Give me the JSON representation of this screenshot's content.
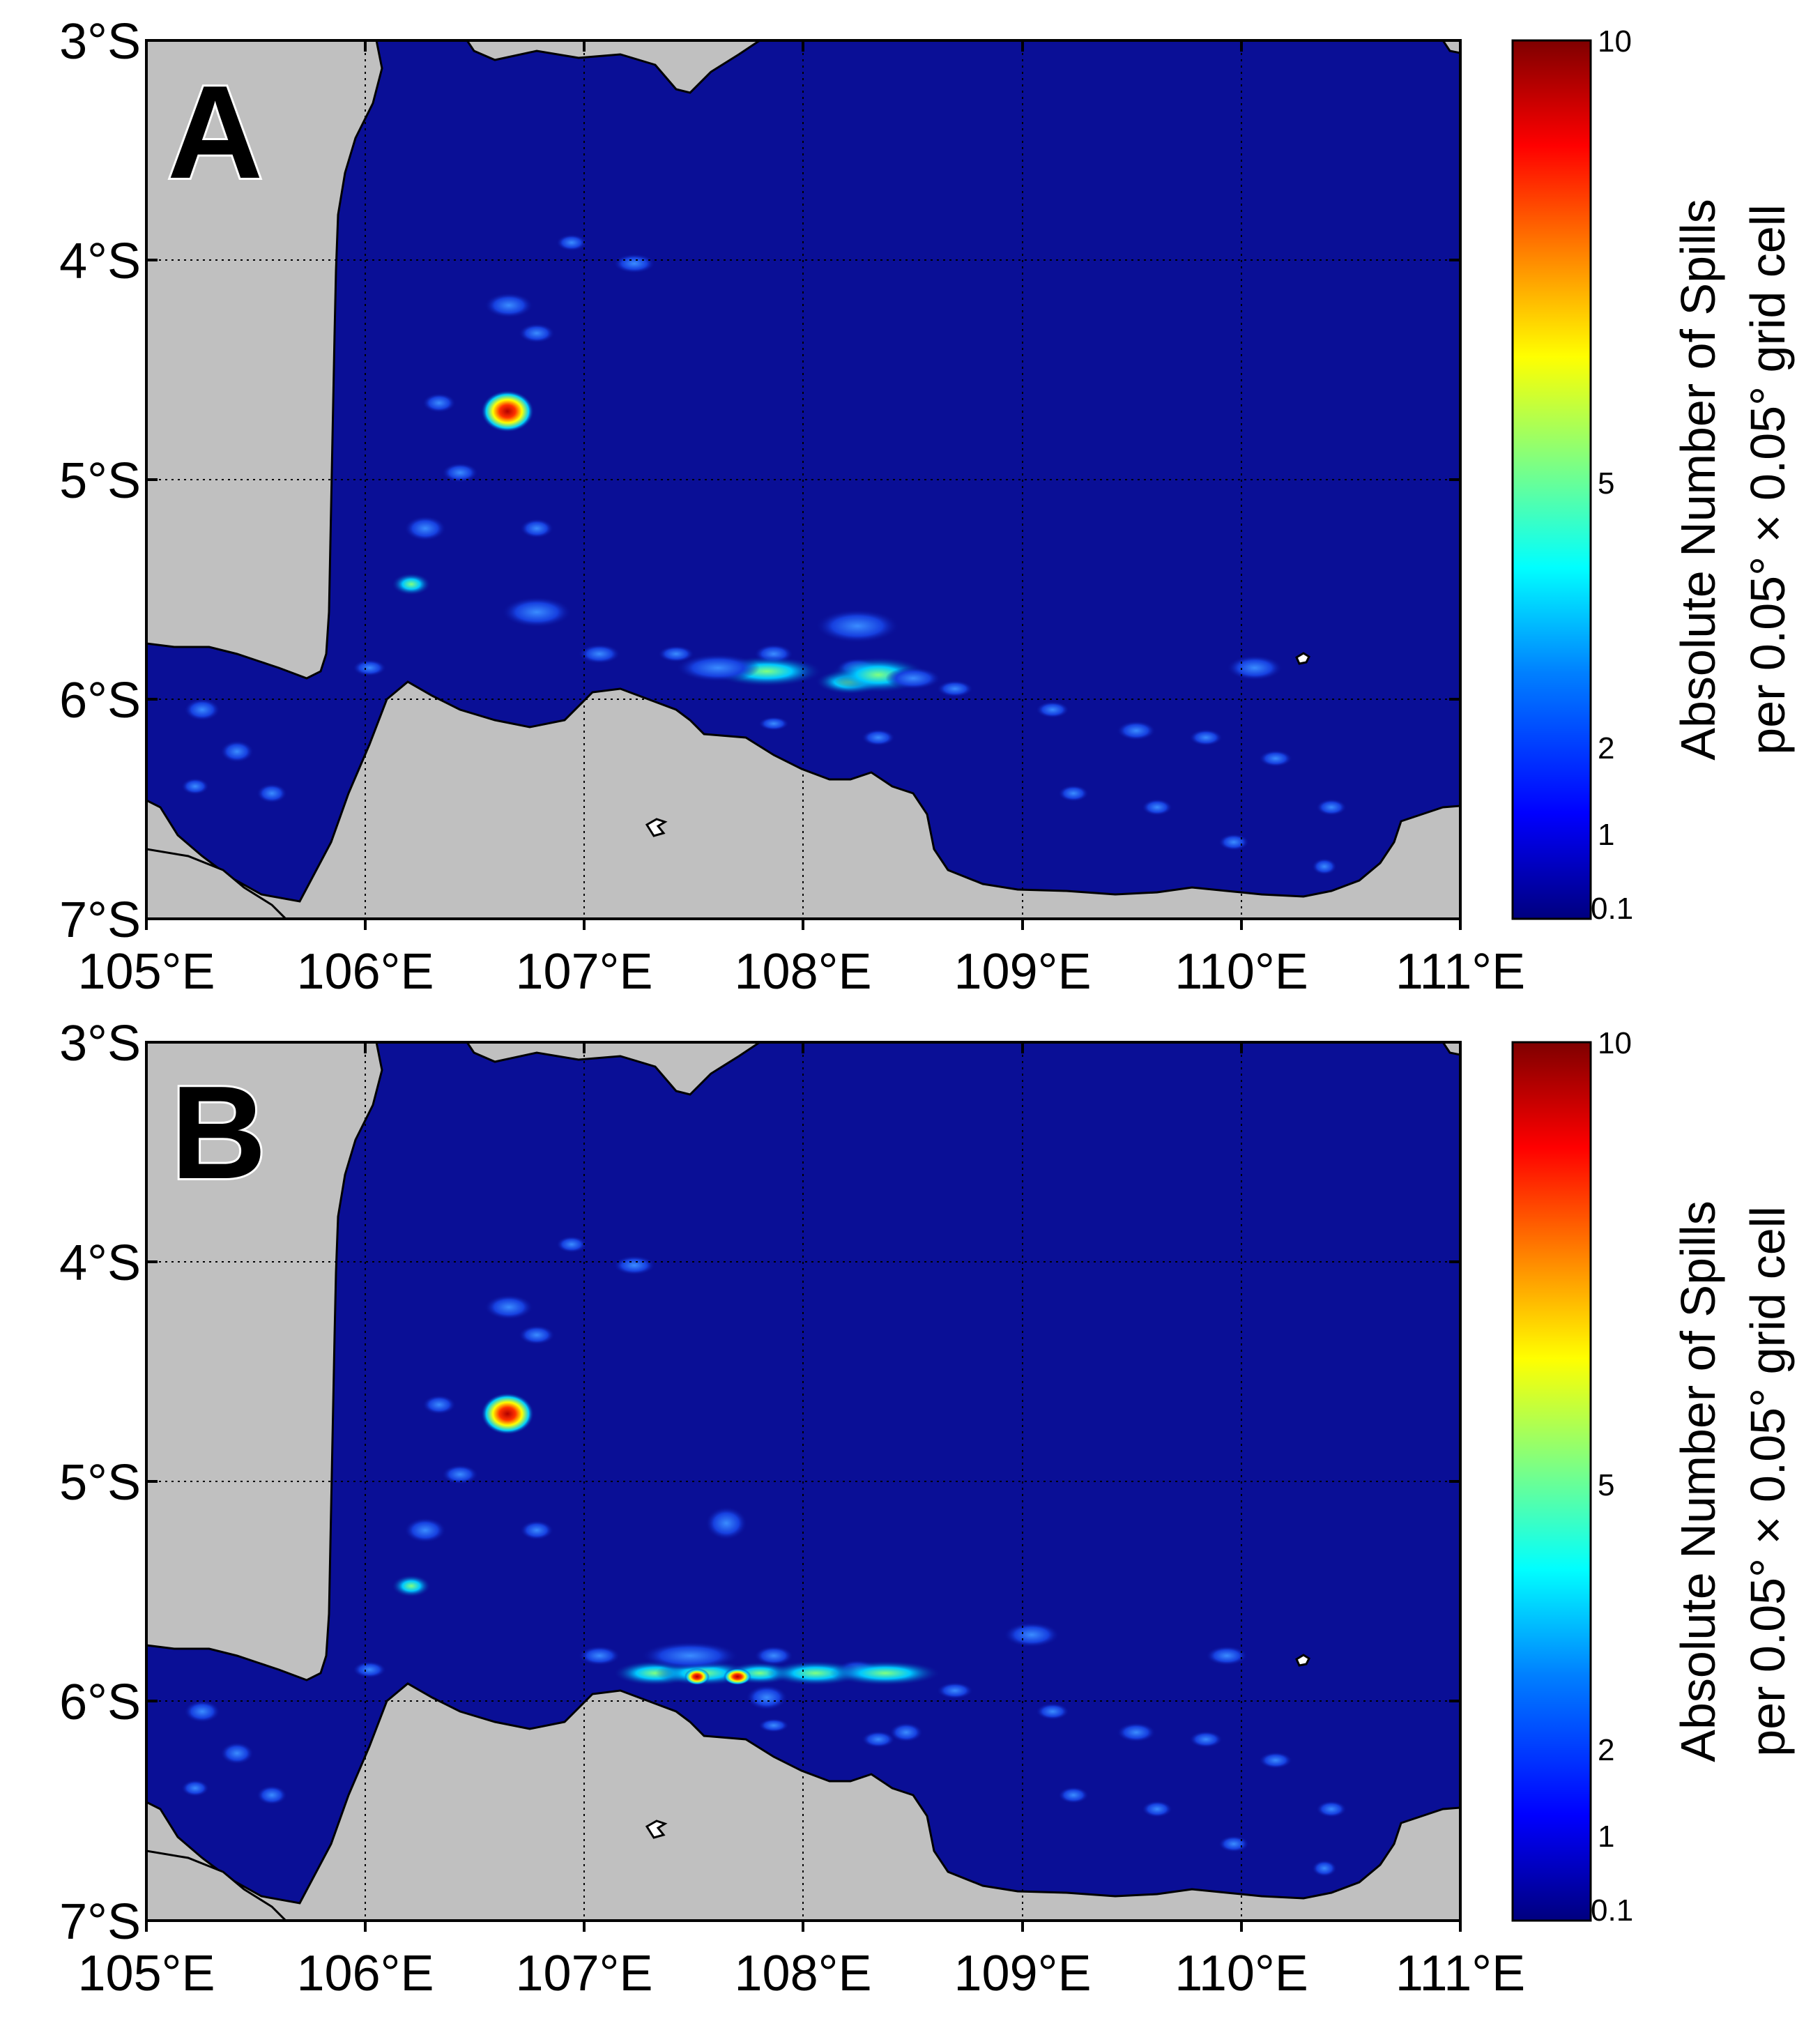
{
  "figure": {
    "panels": [
      {
        "label": "A",
        "lat_ticks": [
          "3°S",
          "4°S",
          "5°S",
          "6°S",
          "7°S"
        ],
        "lon_ticks": [
          "105°E",
          "106°E",
          "107°E",
          "108°E",
          "109°E",
          "110°E",
          "111°E"
        ],
        "colorbar": {
          "ticks": [
            "10",
            "5",
            "2",
            "1",
            "0.1"
          ],
          "title_line1": "Absolute Number of Spills",
          "title_line2": "per 0.05° × 0.05° grid cell"
        }
      },
      {
        "label": "B",
        "lat_ticks": [
          "3°S",
          "4°S",
          "5°S",
          "6°S",
          "7°S"
        ],
        "lon_ticks": [
          "105°E",
          "106°E",
          "107°E",
          "108°E",
          "109°E",
          "110°E",
          "111°E"
        ],
        "colorbar": {
          "ticks": [
            "10",
            "5",
            "2",
            "1",
            "0.1"
          ],
          "title_line1": "Absolute Number of Spills",
          "title_line2": "per 0.05° × 0.05° grid cell"
        }
      }
    ]
  },
  "colors": {
    "sea": "#0a0f96",
    "land": "#c0c0c0",
    "hotspot": "#cc0000",
    "colormap": [
      "#00007f",
      "#0000ff",
      "#0080ff",
      "#00ffff",
      "#80ff80",
      "#ffff00",
      "#ff8000",
      "#ff0000",
      "#7f0000"
    ]
  },
  "map_extent": {
    "lon_min": 105,
    "lon_max": 111,
    "lat_min": -7,
    "lat_max": -3
  }
}
